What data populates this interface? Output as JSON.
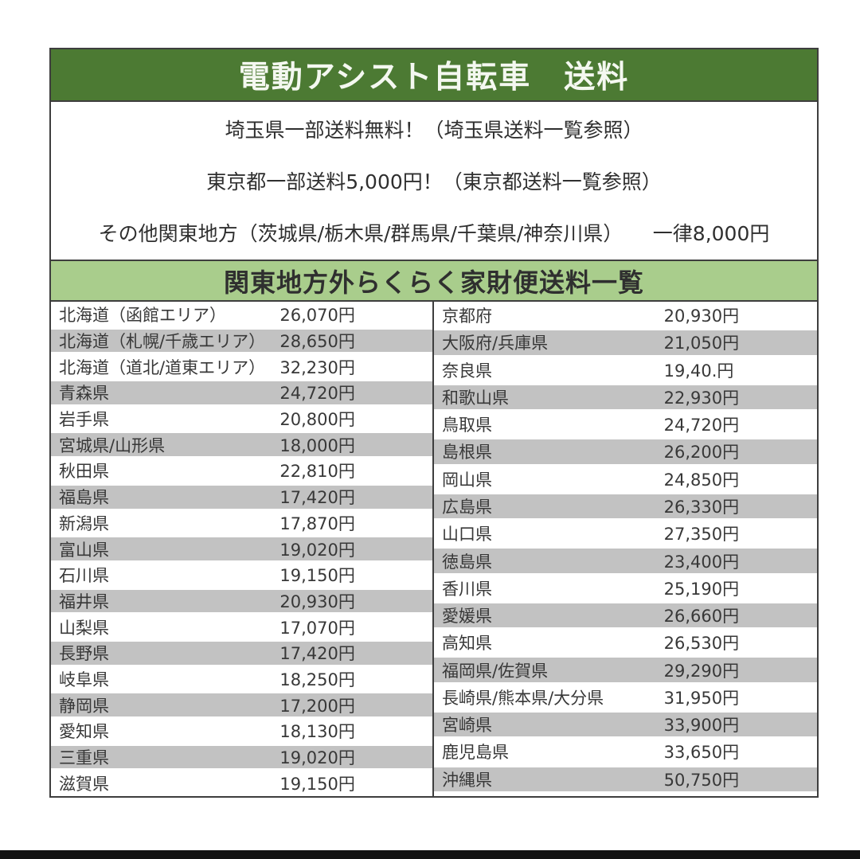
{
  "header": {
    "title": "電動アシスト自転車　送料"
  },
  "notes": [
    "埼玉県一部送料無料！（埼玉県送料一覧参照）",
    "東京都一部送料5,000円！（東京都送料一覧参照）",
    "その他関東地方（茨城県/栃木県/群馬県/千葉県/神奈川県）　　一律8,000円"
  ],
  "table": {
    "title": "関東地方外らくらく家財便送料一覧",
    "left_rows": [
      {
        "name": "北海道（函館エリア）",
        "price": "26,070円"
      },
      {
        "name": "北海道（札幌/千歳エリア）",
        "price": "28,650円"
      },
      {
        "name": "北海道（道北/道東エリア）",
        "price": "32,230円"
      },
      {
        "name": "青森県",
        "price": "24,720円"
      },
      {
        "name": "岩手県",
        "price": "20,800円"
      },
      {
        "name": "宮城県/山形県",
        "price": "18,000円"
      },
      {
        "name": "秋田県",
        "price": "22,810円"
      },
      {
        "name": "福島県",
        "price": "17,420円"
      },
      {
        "name": "新潟県",
        "price": "17,870円"
      },
      {
        "name": "富山県",
        "price": "19,020円"
      },
      {
        "name": "石川県",
        "price": "19,150円"
      },
      {
        "name": "福井県",
        "price": "20,930円"
      },
      {
        "name": "山梨県",
        "price": "17,070円"
      },
      {
        "name": "長野県",
        "price": "17,420円"
      },
      {
        "name": "岐阜県",
        "price": "18,250円"
      },
      {
        "name": "静岡県",
        "price": "17,200円"
      },
      {
        "name": "愛知県",
        "price": "18,130円"
      },
      {
        "name": "三重県",
        "price": "19,020円"
      },
      {
        "name": "滋賀県",
        "price": "19,150円"
      }
    ],
    "right_rows": [
      {
        "name": "京都府",
        "price": "20,930円"
      },
      {
        "name": "大阪府/兵庫県",
        "price": "21,050円"
      },
      {
        "name": "奈良県",
        "price": "19,40.円"
      },
      {
        "name": "和歌山県",
        "price": "22,930円"
      },
      {
        "name": "鳥取県",
        "price": "24,720円"
      },
      {
        "name": "島根県",
        "price": "26,200円"
      },
      {
        "name": "岡山県",
        "price": "24,850円"
      },
      {
        "name": "広島県",
        "price": "26,330円"
      },
      {
        "name": "山口県",
        "price": "27,350円"
      },
      {
        "name": "徳島県",
        "price": "23,400円"
      },
      {
        "name": "香川県",
        "price": "25,190円"
      },
      {
        "name": "愛媛県",
        "price": "26,660円"
      },
      {
        "name": "高知県",
        "price": "26,530円"
      },
      {
        "name": "福岡県/佐賀県",
        "price": "29,290円"
      },
      {
        "name": "長崎県/熊本県/大分県",
        "price": "31,950円"
      },
      {
        "name": "宮崎県",
        "price": "33,900円"
      },
      {
        "name": "鹿児島県",
        "price": "33,650円"
      },
      {
        "name": "沖縄県",
        "price": "50,750円"
      },
      {
        "name": "",
        "price": ""
      }
    ]
  },
  "colors": {
    "header_green": "#4c7a33",
    "subheader_green": "#a9cd8c",
    "row_gray": "#c2c2c2",
    "border_dark": "#3e3e3e",
    "text_dark": "#3a3a3a",
    "header_text": "#f4f8f0",
    "bottom_bar_black": "#121212"
  }
}
